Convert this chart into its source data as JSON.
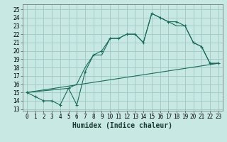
{
  "bg_color": "#c8e8e4",
  "grid_color": "#9ec8c4",
  "line_color": "#1a6b5a",
  "xlabel": "Humidex (Indice chaleur)",
  "xlim": [
    -0.5,
    23.5
  ],
  "ylim": [
    12.8,
    25.6
  ],
  "xticks": [
    0,
    1,
    2,
    3,
    4,
    5,
    6,
    7,
    8,
    9,
    10,
    11,
    12,
    13,
    14,
    15,
    16,
    17,
    18,
    19,
    20,
    21,
    22,
    23
  ],
  "yticks": [
    13,
    14,
    15,
    16,
    17,
    18,
    19,
    20,
    21,
    22,
    23,
    24,
    25
  ],
  "line1_x": [
    0,
    1,
    2,
    3,
    4,
    5,
    6,
    7,
    8,
    9,
    10,
    11,
    12,
    13,
    14,
    15,
    16,
    17,
    18,
    19,
    20,
    21,
    22,
    23
  ],
  "line1_y": [
    15,
    14.5,
    14,
    14,
    13.5,
    15.5,
    13.5,
    17.5,
    19.5,
    20,
    21.5,
    21.5,
    22,
    22,
    21,
    24.5,
    24,
    23.5,
    23.5,
    23,
    21,
    20.5,
    18.5,
    18.5
  ],
  "line2_x": [
    0,
    5,
    6,
    7,
    8,
    9,
    10,
    11,
    12,
    13,
    14,
    15,
    16,
    17,
    18,
    19,
    20,
    21,
    22,
    23
  ],
  "line2_y": [
    15,
    15.5,
    16,
    18,
    19.5,
    19.5,
    21.5,
    21.5,
    22,
    22,
    21,
    24.5,
    24,
    23.5,
    23,
    23,
    21,
    20.5,
    18.5,
    18.5
  ],
  "line3_x": [
    0,
    23
  ],
  "line3_y": [
    15,
    18.5
  ],
  "tick_fontsize": 5.5,
  "xlabel_fontsize": 7.0
}
